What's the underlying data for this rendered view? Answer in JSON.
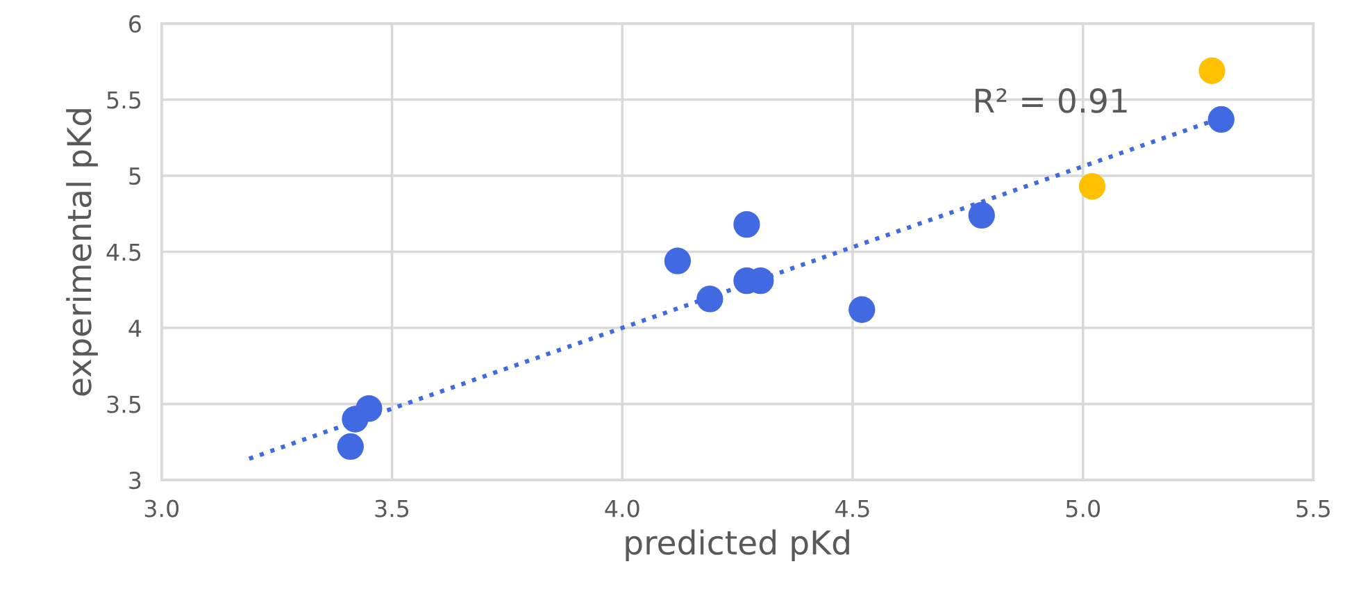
{
  "chart_data": {
    "type": "scatter",
    "xlabel": "predicted pKd",
    "ylabel": "experimental pKd",
    "xlim": [
      3.0,
      5.5
    ],
    "xticks": [
      {
        "value": 3.0,
        "label": "3.0"
      },
      {
        "value": 3.5,
        "label": "3.5"
      },
      {
        "value": 4.0,
        "label": "4.0"
      },
      {
        "value": 4.5,
        "label": "4.5"
      },
      {
        "value": 5.0,
        "label": "5.0"
      },
      {
        "value": 5.5,
        "label": "5.5"
      }
    ],
    "ylim": [
      3,
      6
    ],
    "yticks": [
      3,
      3.5,
      4,
      4.5,
      5,
      5.5,
      6
    ],
    "grid": true,
    "marker": "circle",
    "series": [
      {
        "color": "#4169e1",
        "x": [
          3.41,
          3.42,
          3.45,
          4.12,
          4.19,
          4.27,
          4.27,
          4.3,
          4.52,
          4.78,
          5.3
        ],
        "values": [
          3.22,
          3.4,
          3.47,
          4.44,
          4.19,
          4.68,
          4.31,
          4.31,
          4.12,
          4.74,
          5.37
        ]
      },
      {
        "color": "#ffc000",
        "x": [
          5.02,
          5.28
        ],
        "values": [
          4.93,
          5.69
        ]
      },
      {
        "type": "line",
        "color": "#4169e1",
        "line_style": "dotted",
        "marker": "none",
        "x": [
          3.19,
          5.3
        ],
        "values": [
          3.14,
          5.38
        ]
      }
    ],
    "annotations": [
      "R² = 0.91"
    ]
  }
}
